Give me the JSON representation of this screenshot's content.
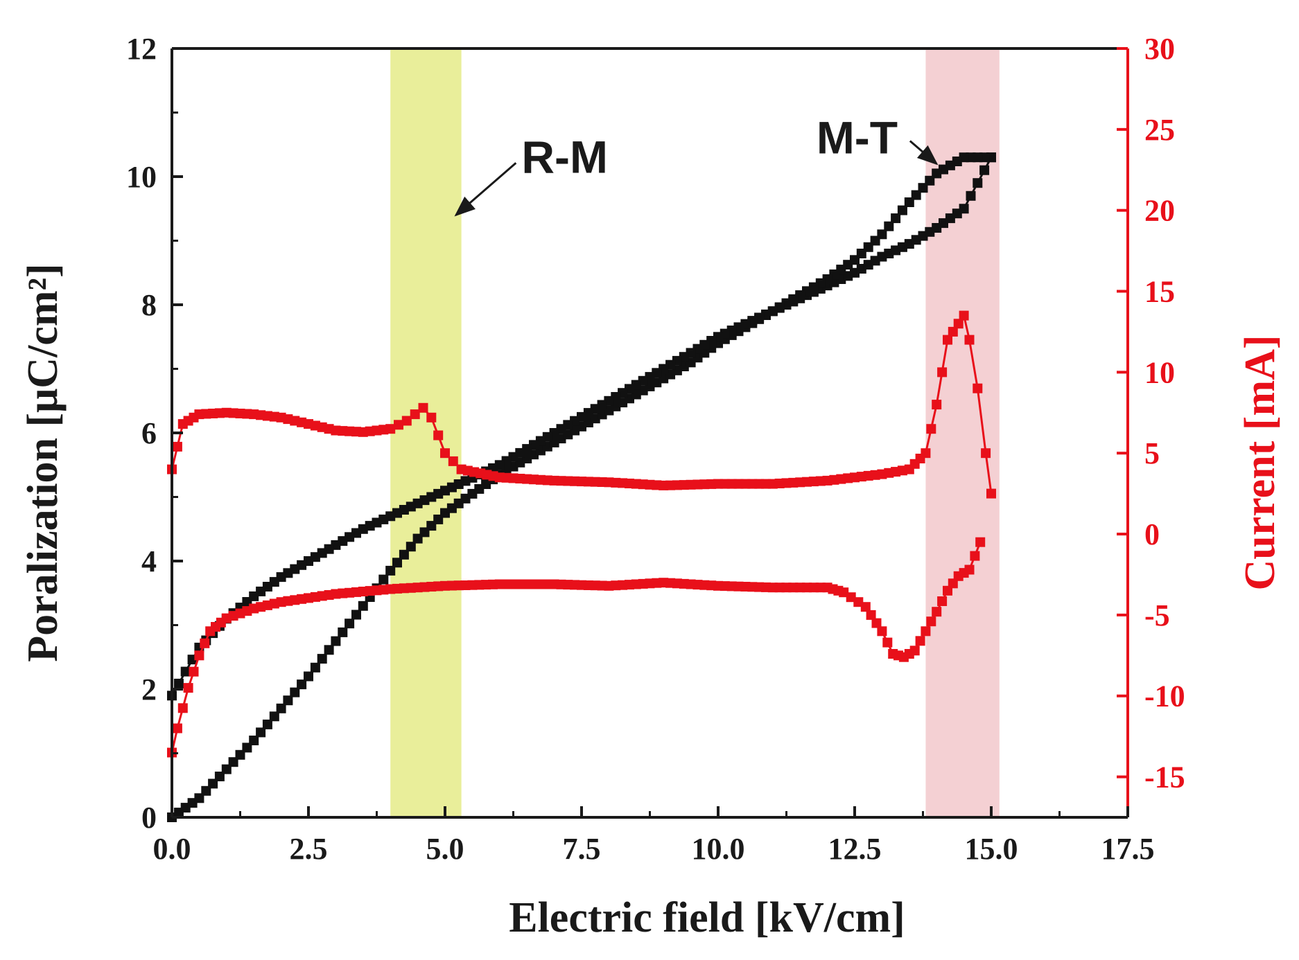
{
  "chart_data": {
    "type": "scatter",
    "title": "",
    "xlabel": "Electric field [kV/cm]",
    "ylabel": "Poralization [μC/cm²]",
    "y2label": "Current [mA]",
    "xlim": [
      0,
      17.5
    ],
    "ylim": [
      0,
      12
    ],
    "y2lim": [
      -17.5,
      30
    ],
    "xticks": [
      "0.0",
      "2.5",
      "5.0",
      "7.5",
      "10.0",
      "12.5",
      "15.0",
      "17.5"
    ],
    "yticks": [
      "0",
      "2",
      "4",
      "6",
      "8",
      "10",
      "12"
    ],
    "y2ticks": [
      "-15",
      "-10",
      "-5",
      "0",
      "5",
      "10",
      "15",
      "20",
      "25",
      "30"
    ],
    "grid": false,
    "colors": {
      "polarization": "#111111",
      "current": "#e8101a",
      "band_rm": "#e9ee9a",
      "band_mt": "#f4d0d3"
    },
    "bands": [
      {
        "label": "R-M",
        "x_range": [
          4.0,
          5.3
        ]
      },
      {
        "label": "M-T",
        "x_range": [
          13.8,
          15.15
        ]
      }
    ],
    "annotations": [
      {
        "text": "R-M",
        "text_at": [
          6.4,
          10.3
        ],
        "arrow_to": [
          5.2,
          9.4
        ]
      },
      {
        "text": "M-T",
        "text_at": [
          11.8,
          10.6
        ],
        "arrow_to": [
          14.0,
          10.2
        ]
      }
    ],
    "series": [
      {
        "name": "Polarization (ascending)",
        "axis": "left",
        "x": [
          0.0,
          0.5,
          1.0,
          1.5,
          2.0,
          2.5,
          3.0,
          3.5,
          4.0,
          4.5,
          5.0,
          5.5,
          6.0,
          6.5,
          7.0,
          7.5,
          8.0,
          8.5,
          9.0,
          9.5,
          10.0,
          10.5,
          11.0,
          11.5,
          12.0,
          12.5,
          13.0,
          13.5,
          14.0,
          14.5,
          15.0
        ],
        "y": [
          0.0,
          0.3,
          0.75,
          1.2,
          1.7,
          2.2,
          2.75,
          3.3,
          3.85,
          4.35,
          4.75,
          5.05,
          5.35,
          5.6,
          5.85,
          6.1,
          6.35,
          6.6,
          6.85,
          7.1,
          7.4,
          7.65,
          7.9,
          8.1,
          8.3,
          8.5,
          8.75,
          8.95,
          9.2,
          9.5,
          10.3
        ]
      },
      {
        "name": "Polarization (descending)",
        "axis": "left",
        "x": [
          15.0,
          14.5,
          14.0,
          13.5,
          13.0,
          12.5,
          12.0,
          11.5,
          11.0,
          10.5,
          10.0,
          9.5,
          9.0,
          8.5,
          8.0,
          7.5,
          7.0,
          6.5,
          6.0,
          5.5,
          5.0,
          4.5,
          4.0,
          3.5,
          3.0,
          2.5,
          2.0,
          1.5,
          1.0,
          0.5,
          0.0
        ],
        "y": [
          10.3,
          10.3,
          10.05,
          9.6,
          9.1,
          8.7,
          8.4,
          8.15,
          7.9,
          7.7,
          7.5,
          7.25,
          7.0,
          6.75,
          6.5,
          6.25,
          6.0,
          5.75,
          5.5,
          5.3,
          5.1,
          4.9,
          4.7,
          4.5,
          4.25,
          4.0,
          3.75,
          3.45,
          3.1,
          2.65,
          1.9
        ]
      },
      {
        "name": "Current (forward)",
        "axis": "right",
        "x": [
          0.0,
          0.2,
          0.5,
          1.0,
          1.5,
          2.0,
          2.5,
          3.0,
          3.5,
          4.0,
          4.3,
          4.6,
          4.75,
          5.0,
          5.3,
          6.0,
          7.0,
          8.0,
          9.0,
          10.0,
          11.0,
          12.0,
          13.0,
          13.5,
          13.8,
          14.0,
          14.2,
          14.4,
          14.5,
          14.6,
          14.75,
          14.9,
          15.0
        ],
        "y": [
          4.0,
          6.8,
          7.4,
          7.5,
          7.4,
          7.2,
          6.8,
          6.4,
          6.3,
          6.5,
          7.0,
          7.8,
          7.2,
          5.0,
          4.0,
          3.5,
          3.3,
          3.2,
          3.0,
          3.1,
          3.1,
          3.3,
          3.7,
          4.0,
          5.0,
          8.0,
          12.0,
          13.0,
          13.5,
          12.0,
          9.0,
          5.0,
          2.5
        ]
      },
      {
        "name": "Current (reverse)",
        "axis": "right",
        "x": [
          14.8,
          14.6,
          14.4,
          14.2,
          14.0,
          13.8,
          13.6,
          13.4,
          13.2,
          13.0,
          12.7,
          12.3,
          12.0,
          11.0,
          10.0,
          9.0,
          8.0,
          7.0,
          6.0,
          5.0,
          4.0,
          3.0,
          2.0,
          1.5,
          1.0,
          0.7,
          0.5,
          0.3,
          0.1,
          0.0
        ],
        "y": [
          -0.5,
          -2.2,
          -2.6,
          -3.5,
          -4.8,
          -6.0,
          -7.2,
          -7.6,
          -7.4,
          -6.0,
          -4.5,
          -3.6,
          -3.3,
          -3.3,
          -3.2,
          -3.0,
          -3.2,
          -3.1,
          -3.1,
          -3.2,
          -3.4,
          -3.7,
          -4.2,
          -4.6,
          -5.2,
          -6.0,
          -7.5,
          -9.5,
          -12.0,
          -13.5
        ]
      }
    ]
  }
}
